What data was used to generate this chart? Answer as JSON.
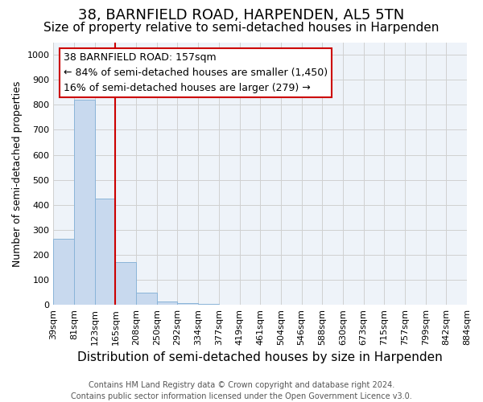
{
  "title": "38, BARNFIELD ROAD, HARPENDEN, AL5 5TN",
  "subtitle": "Size of property relative to semi-detached houses in Harpenden",
  "xlabel": "Distribution of semi-detached houses by size in Harpenden",
  "ylabel": "Number of semi-detached properties",
  "bar_values": [
    265,
    820,
    425,
    170,
    50,
    13,
    7,
    4,
    0,
    0,
    0,
    0,
    0,
    0,
    0,
    0,
    0,
    0,
    0,
    0
  ],
  "bin_labels": [
    "39sqm",
    "81sqm",
    "123sqm",
    "165sqm",
    "208sqm",
    "250sqm",
    "292sqm",
    "334sqm",
    "377sqm",
    "419sqm",
    "461sqm",
    "504sqm",
    "546sqm",
    "588sqm",
    "630sqm",
    "673sqm",
    "715sqm",
    "757sqm",
    "799sqm",
    "842sqm",
    "884sqm"
  ],
  "bar_color": "#c8d9ee",
  "bar_edge_color": "#8ab4d8",
  "vline_x": 3,
  "vline_color": "#cc0000",
  "ylim": [
    0,
    1050
  ],
  "yticks": [
    0,
    100,
    200,
    300,
    400,
    500,
    600,
    700,
    800,
    900,
    1000
  ],
  "annotation_line1": "38 BARNFIELD ROAD: 157sqm",
  "annotation_line2": "← 84% of semi-detached houses are smaller (1,450)",
  "annotation_line3": "16% of semi-detached houses are larger (279) →",
  "footer": "Contains HM Land Registry data © Crown copyright and database right 2024.\nContains public sector information licensed under the Open Government Licence v3.0.",
  "title_fontsize": 13,
  "subtitle_fontsize": 11,
  "xlabel_fontsize": 11,
  "ylabel_fontsize": 9,
  "tick_fontsize": 8,
  "annot_fontsize": 9,
  "footer_fontsize": 7,
  "plot_bg_color": "#eef3f9"
}
